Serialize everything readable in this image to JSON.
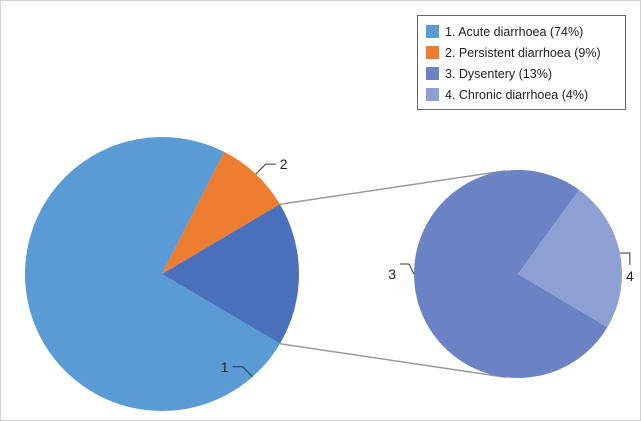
{
  "chart_data": {
    "type": "pie",
    "subtype": "pie-of-pie",
    "slices": [
      {
        "id": "1",
        "label": "1",
        "legend": "1. Acute diarrhoea (74%)",
        "value": 74,
        "color": "#5b9bd5"
      },
      {
        "id": "2",
        "label": "2",
        "legend": "2. Persistent diarrhoea (9%)",
        "value": 9,
        "color": "#ed7d31"
      },
      {
        "id": "3",
        "label": "3",
        "legend": "3. Dysentery (13%)",
        "value": 13,
        "color": "#6b83c4"
      },
      {
        "id": "4",
        "label": "4",
        "legend": "4. Chronic diarrhoea (4%)",
        "value": 4,
        "color": "#8d9fd3"
      }
    ],
    "main_pie": {
      "slices": [
        "1",
        "2"
      ],
      "other_slice_color": "#4a6fbb"
    },
    "secondary_pie": {
      "slices": [
        "3",
        "4"
      ]
    },
    "legend_position": "top-right"
  }
}
